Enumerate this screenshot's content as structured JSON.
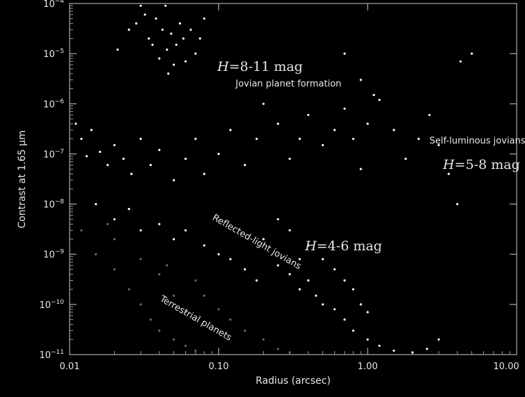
{
  "chart_data": {
    "type": "scatter",
    "xlabel": "Radius (arcsec)",
    "ylabel": "Contrast at 1.65 μm",
    "x_scale": "log",
    "y_scale": "log",
    "xlim": [
      0.01,
      10
    ],
    "ylim": [
      1e-11,
      0.0001
    ],
    "grid": false,
    "x_ticks": [
      {
        "value": 0.01,
        "label": "0.01"
      },
      {
        "value": 0.1,
        "label": "0.10"
      },
      {
        "value": 1,
        "label": "1.00"
      },
      {
        "value": 10,
        "label": "10.00"
      }
    ],
    "y_ticks": [
      {
        "value": 0.0001,
        "mant": "10",
        "exp": "−4"
      },
      {
        "value": 1e-05,
        "mant": "10",
        "exp": "−5"
      },
      {
        "value": 1e-06,
        "mant": "10",
        "exp": "−6"
      },
      {
        "value": 1e-07,
        "mant": "10",
        "exp": "−7"
      },
      {
        "value": 1e-08,
        "mant": "10",
        "exp": "−8"
      },
      {
        "value": 1e-09,
        "mant": "10",
        "exp": "−9"
      },
      {
        "value": 1e-10,
        "mant": "10",
        "exp": "−10"
      },
      {
        "value": 1e-11,
        "mant": "10",
        "exp": "−11"
      }
    ],
    "annotations": [
      {
        "text": "Jovian planet formation",
        "x": 0.13,
        "y": 2.2e-06
      },
      {
        "text": "Self-luminous jovians",
        "x": 2.6,
        "y": 1.6e-07
      },
      {
        "text": "Reflected-light jovians",
        "x": 0.09,
        "y": 5e-09,
        "rotation": 30
      },
      {
        "text": "Terrestrial planets",
        "x": 0.04,
        "y": 1.2e-10,
        "rotation": 30
      }
    ],
    "mag_labels": [
      {
        "italic": "H",
        "rest": "=8-11 mag",
        "x": 0.098,
        "y": 4.5e-06
      },
      {
        "italic": "H",
        "rest": "=5-8 mag",
        "x": 3.2,
        "y": 5e-08
      },
      {
        "italic": "H",
        "rest": "=4-6 mag",
        "x": 0.38,
        "y": 1.2e-09
      }
    ],
    "series": [
      {
        "color": "#ffffff",
        "points": [
          [
            0.021,
            1.2e-05
          ],
          [
            0.025,
            3e-05
          ],
          [
            0.028,
            4e-05
          ],
          [
            0.03,
            9e-05
          ],
          [
            0.032,
            6e-05
          ],
          [
            0.034,
            2e-05
          ],
          [
            0.036,
            1.5e-05
          ],
          [
            0.038,
            5e-05
          ],
          [
            0.04,
            8e-06
          ],
          [
            0.042,
            3e-05
          ],
          [
            0.044,
            9e-05
          ],
          [
            0.045,
            1.2e-05
          ],
          [
            0.046,
            4e-06
          ],
          [
            0.048,
            2.5e-05
          ],
          [
            0.05,
            6e-06
          ],
          [
            0.052,
            1.5e-05
          ],
          [
            0.055,
            4e-05
          ],
          [
            0.058,
            2e-05
          ],
          [
            0.06,
            7e-06
          ],
          [
            0.065,
            3e-05
          ],
          [
            0.07,
            1e-05
          ],
          [
            0.075,
            2e-05
          ],
          [
            0.08,
            5e-05
          ],
          [
            0.011,
            4e-07
          ],
          [
            0.012,
            2e-07
          ],
          [
            0.013,
            9e-08
          ],
          [
            0.014,
            3e-07
          ],
          [
            0.016,
            1.1e-07
          ],
          [
            0.018,
            6e-08
          ],
          [
            0.02,
            1.5e-07
          ],
          [
            0.023,
            8e-08
          ],
          [
            0.026,
            4e-08
          ],
          [
            0.03,
            2e-07
          ],
          [
            0.035,
            6e-08
          ],
          [
            0.04,
            1.2e-07
          ],
          [
            0.05,
            3e-08
          ],
          [
            0.06,
            8e-08
          ],
          [
            0.07,
            2e-07
          ],
          [
            0.08,
            4e-08
          ],
          [
            0.1,
            1e-07
          ],
          [
            0.12,
            3e-07
          ],
          [
            0.15,
            6e-08
          ],
          [
            0.18,
            2e-07
          ],
          [
            0.2,
            1e-06
          ],
          [
            0.25,
            4e-07
          ],
          [
            0.3,
            8e-08
          ],
          [
            0.35,
            2e-07
          ],
          [
            0.4,
            6e-07
          ],
          [
            0.5,
            1.5e-07
          ],
          [
            0.6,
            3e-07
          ],
          [
            0.7,
            8e-07
          ],
          [
            0.8,
            2e-07
          ],
          [
            0.9,
            5e-08
          ],
          [
            1.0,
            4e-07
          ],
          [
            1.2,
            1.2e-06
          ],
          [
            1.5,
            3e-07
          ],
          [
            1.8,
            8e-08
          ],
          [
            2.2,
            2e-07
          ],
          [
            2.6,
            6e-07
          ],
          [
            3.0,
            1.5e-07
          ],
          [
            3.5,
            4e-08
          ],
          [
            4.0,
            1e-08
          ],
          [
            4.2,
            7e-06
          ],
          [
            5.0,
            1e-05
          ],
          [
            0.7,
            1e-05
          ],
          [
            0.9,
            3e-06
          ],
          [
            1.1,
            1.5e-06
          ],
          [
            0.015,
            1e-08
          ],
          [
            0.02,
            5e-09
          ],
          [
            0.025,
            8e-09
          ],
          [
            0.03,
            3e-09
          ],
          [
            0.04,
            4e-09
          ],
          [
            0.05,
            2e-09
          ],
          [
            0.06,
            3e-09
          ],
          [
            0.08,
            1.5e-09
          ],
          [
            0.1,
            1e-09
          ],
          [
            0.12,
            8e-10
          ],
          [
            0.15,
            5e-10
          ],
          [
            0.18,
            3e-10
          ],
          [
            0.2,
            2e-09
          ],
          [
            0.25,
            6e-10
          ],
          [
            0.3,
            4e-10
          ],
          [
            0.35,
            2e-10
          ],
          [
            0.4,
            3e-10
          ],
          [
            0.45,
            1.5e-10
          ],
          [
            0.5,
            1e-10
          ],
          [
            0.6,
            8e-11
          ],
          [
            0.7,
            5e-11
          ],
          [
            0.8,
            3e-11
          ],
          [
            1.0,
            2e-11
          ],
          [
            1.2,
            1.5e-11
          ],
          [
            1.5,
            1.2e-11
          ],
          [
            2.0,
            1.1e-11
          ],
          [
            2.5,
            1.3e-11
          ],
          [
            3.0,
            2e-11
          ],
          [
            0.3,
            3e-09
          ],
          [
            0.4,
            1.5e-09
          ],
          [
            0.5,
            8e-10
          ],
          [
            0.6,
            5e-10
          ],
          [
            0.7,
            3e-10
          ],
          [
            0.8,
            2e-10
          ],
          [
            0.9,
            1e-10
          ],
          [
            1.0,
            7e-11
          ],
          [
            0.25,
            5e-09
          ],
          [
            0.35,
            8e-10
          ]
        ]
      },
      {
        "color": "#6a6a6a",
        "points": [
          [
            0.012,
            3e-09
          ],
          [
            0.015,
            1e-09
          ],
          [
            0.02,
            5e-10
          ],
          [
            0.025,
            2e-10
          ],
          [
            0.03,
            1e-10
          ],
          [
            0.035,
            5e-11
          ],
          [
            0.04,
            3e-11
          ],
          [
            0.05,
            2e-11
          ],
          [
            0.06,
            1.5e-11
          ],
          [
            0.07,
            1.2e-11
          ],
          [
            0.08,
            1.5e-10
          ],
          [
            0.1,
            8e-11
          ],
          [
            0.12,
            5e-11
          ],
          [
            0.15,
            3e-11
          ],
          [
            0.2,
            2e-11
          ],
          [
            0.25,
            1.3e-11
          ],
          [
            0.3,
            1.1e-11
          ],
          [
            0.02,
            2e-09
          ],
          [
            0.03,
            8e-10
          ],
          [
            0.04,
            4e-10
          ],
          [
            0.05,
            1.5e-10
          ],
          [
            0.06,
            7e-11
          ],
          [
            0.018,
            4e-09
          ],
          [
            0.045,
            6e-10
          ],
          [
            0.07,
            3e-10
          ]
        ]
      }
    ]
  }
}
